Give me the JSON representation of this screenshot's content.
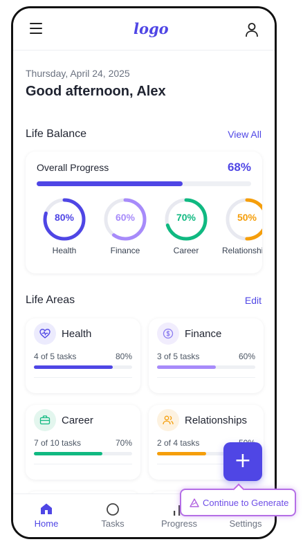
{
  "header": {
    "logo": "logo",
    "menu_icon": "hamburger-menu-icon",
    "user_icon": "user-profile-icon"
  },
  "date": "Thursday, April 24, 2025",
  "greeting": "Good afternoon, Alex",
  "life_balance": {
    "title": "Life Balance",
    "link": "View All",
    "overall_label": "Overall Progress",
    "overall_value": "68%",
    "overall_fraction": 0.68,
    "rings": [
      {
        "name": "Health",
        "value": "80%",
        "fraction": 0.8,
        "color": "#4f46e5"
      },
      {
        "name": "Finance",
        "value": "60%",
        "fraction": 0.6,
        "color": "#a78bfa"
      },
      {
        "name": "Career",
        "value": "70%",
        "fraction": 0.7,
        "color": "#10b981"
      },
      {
        "name": "Relationships",
        "value": "50%",
        "fraction": 0.5,
        "color": "#f59e0b"
      }
    ]
  },
  "life_areas": {
    "title": "Life Areas",
    "link": "Edit",
    "areas": [
      {
        "name": "Health",
        "tasks": "4 of 5 tasks",
        "pct": "80%",
        "fraction": 0.8,
        "color": "#4f46e5",
        "icon_bg": "#ecebfd",
        "icon": "heart-pulse-icon"
      },
      {
        "name": "Finance",
        "tasks": "3 of 5 tasks",
        "pct": "60%",
        "fraction": 0.6,
        "color": "#a78bfa",
        "icon_bg": "#f1edfd",
        "icon": "dollar-coin-icon"
      },
      {
        "name": "Career",
        "tasks": "7 of 10 tasks",
        "pct": "70%",
        "fraction": 0.7,
        "color": "#10b981",
        "icon_bg": "#e3f6ee",
        "icon": "briefcase-icon"
      },
      {
        "name": "Relationships",
        "tasks": "2 of 4 tasks",
        "pct": "50%",
        "fraction": 0.5,
        "color": "#f59e0b",
        "icon_bg": "#fdf2e0",
        "icon": "users-icon"
      }
    ]
  },
  "nav": [
    {
      "label": "Home",
      "icon": "home-icon",
      "active": true
    },
    {
      "label": "Tasks",
      "icon": "circle-icon",
      "active": false
    },
    {
      "label": "Progress",
      "icon": "bar-chart-icon",
      "active": false
    },
    {
      "label": "Settings",
      "icon": "settings-icon",
      "active": false
    }
  ],
  "fab": {
    "label": "+",
    "icon": "plus-icon"
  },
  "generate": {
    "label": "Continue to Generate",
    "icon": "magic-triangle-icon"
  },
  "colors": {
    "accent": "#4f46e5",
    "generate_border": "#b46ee6"
  }
}
